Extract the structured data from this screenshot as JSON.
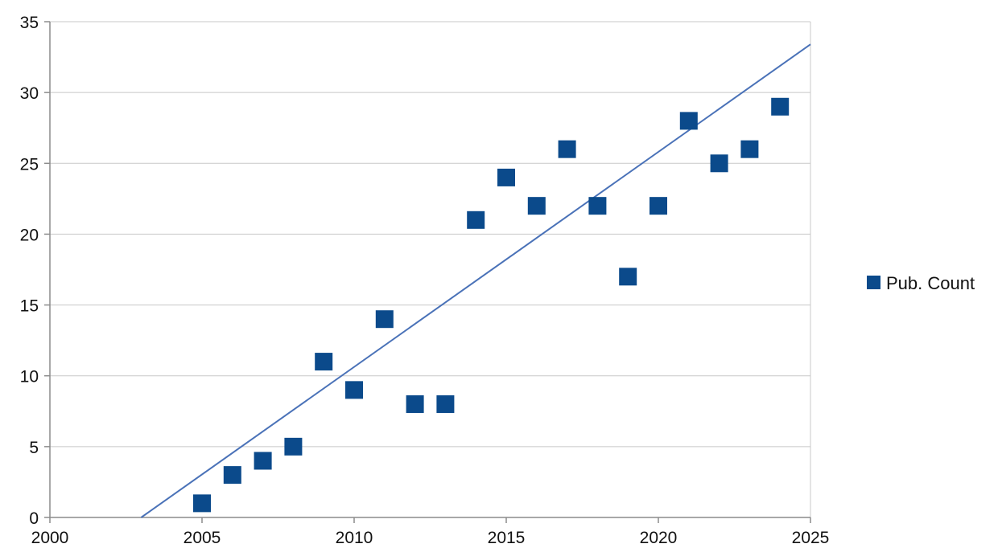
{
  "chart_data": {
    "type": "scatter",
    "title": "",
    "xlabel": "",
    "ylabel": "",
    "xlim": [
      2000,
      2025
    ],
    "ylim": [
      0,
      35
    ],
    "xticks": [
      "2000",
      "2005",
      "2010",
      "2015",
      "2020",
      "2025"
    ],
    "yticks": [
      "0",
      "5",
      "10",
      "15",
      "20",
      "25",
      "30",
      "35"
    ],
    "grid": "horizontal",
    "legend_position": "right",
    "series": [
      {
        "name": "Pub. Count",
        "marker": "square",
        "color": "#0b4a8b",
        "points": [
          {
            "x": 2005,
            "y": 1
          },
          {
            "x": 2006,
            "y": 3
          },
          {
            "x": 2007,
            "y": 4
          },
          {
            "x": 2008,
            "y": 5
          },
          {
            "x": 2009,
            "y": 11
          },
          {
            "x": 2010,
            "y": 9
          },
          {
            "x": 2011,
            "y": 14
          },
          {
            "x": 2012,
            "y": 8
          },
          {
            "x": 2013,
            "y": 8
          },
          {
            "x": 2014,
            "y": 21
          },
          {
            "x": 2015,
            "y": 24
          },
          {
            "x": 2016,
            "y": 22
          },
          {
            "x": 2017,
            "y": 26
          },
          {
            "x": 2018,
            "y": 22
          },
          {
            "x": 2019,
            "y": 17
          },
          {
            "x": 2020,
            "y": 22
          },
          {
            "x": 2021,
            "y": 28
          },
          {
            "x": 2022,
            "y": 25
          },
          {
            "x": 2023,
            "y": 26
          },
          {
            "x": 2024,
            "y": 29
          }
        ]
      }
    ],
    "trendline": {
      "type": "linear",
      "color": "#4a72b8",
      "start": {
        "x": 2003,
        "y": 0
      },
      "end": {
        "x": 2025,
        "y": 33.4
      }
    },
    "colors": {
      "grid": "#c8c8c8",
      "axis": "#8c8c8c",
      "text": "#111111"
    }
  }
}
